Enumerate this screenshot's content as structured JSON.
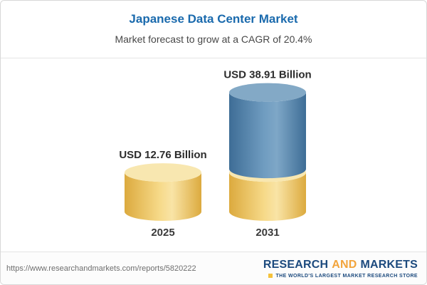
{
  "header": {
    "title": "Japanese Data Center Market",
    "subtitle": "Market forecast to grow at a CAGR of 20.4%"
  },
  "chart_data": {
    "type": "bar",
    "style": "cylinder-3d",
    "title": "Japanese Data Center Market",
    "subtitle": "Market forecast to grow at a CAGR of 20.4%",
    "categories": [
      "2025",
      "2031"
    ],
    "values": [
      12.76,
      38.91
    ],
    "value_labels": [
      "USD 12.76 Billion",
      "USD 38.91 Billion"
    ],
    "unit": "USD Billion",
    "cagr": "20.4%",
    "ylim": [
      0,
      45
    ],
    "legend": "none",
    "grid": false,
    "note": "2031 cylinder shows the 2025 value as a yellow base segment with blue growth above it",
    "colors": {
      "yellow": {
        "edge": "#dcaa3e",
        "mid": "#f6d988",
        "light": "#f9e4a6",
        "cap": "#f8e7b0"
      },
      "blue": {
        "edge": "#3e6d96",
        "mid": "#6f9cc0",
        "light": "#7ea7c7",
        "cap": "#83a9c6"
      }
    }
  },
  "footer": {
    "url": "https://www.researchandmarkets.com/reports/5820222",
    "logo": {
      "word1": "RESEARCH",
      "word2": "AND",
      "word3": "MARKETS",
      "tagline": "THE WORLD'S LARGEST MARKET RESEARCH STORE"
    }
  }
}
